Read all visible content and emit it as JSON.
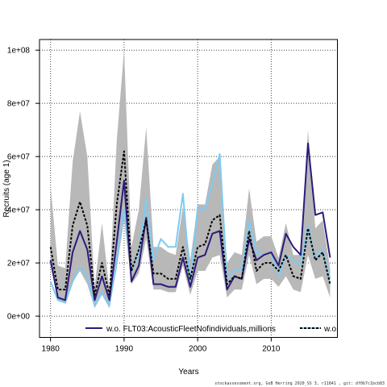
{
  "chart_data": {
    "type": "line",
    "title": "",
    "xlabel": "Years",
    "ylabel": "Recruits (age 1)",
    "xlim": [
      1978.5,
      2019
    ],
    "ylim": [
      -8000000,
      104000000
    ],
    "x_ticks": [
      1980,
      1990,
      2000,
      2010
    ],
    "x_tick_labels": [
      "1980",
      "1990",
      "2000",
      "2010"
    ],
    "y_ticks": [
      0,
      20000000,
      40000000,
      60000000,
      80000000,
      100000000
    ],
    "y_tick_labels": [
      "0e+00",
      "2e+07",
      "4e+07",
      "6e+07",
      "8e+07",
      "1e+08"
    ],
    "grid": true,
    "legend_position": "bottom",
    "x": [
      1980,
      1981,
      1982,
      1983,
      1984,
      1985,
      1986,
      1987,
      1988,
      1989,
      1990,
      1991,
      1992,
      1993,
      1994,
      1995,
      1996,
      1997,
      1998,
      1999,
      2000,
      2001,
      2002,
      2003,
      2004,
      2005,
      2006,
      2007,
      2008,
      2009,
      2010,
      2011,
      2012,
      2013,
      2014,
      2015,
      2016,
      2017,
      2018
    ],
    "band": {
      "lower": [
        19000000,
        6000000,
        5000000,
        13000000,
        17000000,
        12000000,
        3000000,
        8000000,
        3000000,
        18000000,
        36000000,
        12000000,
        16000000,
        29000000,
        10000000,
        10000000,
        9000000,
        9000000,
        19000000,
        8000000,
        17000000,
        17000000,
        22000000,
        23000000,
        7000000,
        10000000,
        10000000,
        23000000,
        12000000,
        14000000,
        14000000,
        11000000,
        15000000,
        10000000,
        9000000,
        23000000,
        14000000,
        15000000,
        7000000
      ],
      "upper": [
        49000000,
        19000000,
        18000000,
        58000000,
        77000000,
        60000000,
        11000000,
        35000000,
        10000000,
        66000000,
        100000000,
        26000000,
        40000000,
        71000000,
        26000000,
        26000000,
        24000000,
        23000000,
        41000000,
        21000000,
        42000000,
        42000000,
        57000000,
        60000000,
        20000000,
        24000000,
        23000000,
        48000000,
        28000000,
        30000000,
        30000000,
        22000000,
        35000000,
        23000000,
        23000000,
        70000000,
        33000000,
        36000000,
        18000000
      ]
    },
    "series": [
      {
        "name": "w.o. FLT03:AcousticFleetNofindividuals,millions",
        "color": "#2e1a7a",
        "style": "solid",
        "values": [
          21000000,
          7000000,
          6000000,
          24000000,
          32000000,
          25000000,
          6000000,
          15000000,
          6000000,
          28000000,
          51000000,
          13000000,
          19000000,
          37000000,
          12000000,
          12000000,
          11000000,
          11000000,
          22000000,
          11000000,
          22000000,
          23000000,
          31000000,
          32000000,
          10000000,
          15000000,
          14000000,
          29000000,
          21000000,
          23000000,
          24000000,
          19000000,
          31000000,
          26000000,
          23000000,
          65000000,
          38000000,
          39000000,
          22000000
        ]
      },
      {
        "name": "w.o.",
        "color": "#7fcbf0",
        "style": "solid",
        "values": [
          13000000,
          6000000,
          5000000,
          13000000,
          18000000,
          15000000,
          4000000,
          9000000,
          4000000,
          21000000,
          40000000,
          17000000,
          23000000,
          44000000,
          21000000,
          29000000,
          26000000,
          26000000,
          46000000,
          13000000,
          41000000,
          40000000,
          50000000,
          61000000,
          14000000,
          17000000,
          17000000,
          36000000,
          24000000,
          23000000,
          24000000,
          15000000,
          23000000,
          21000000,
          19000000,
          34000000,
          22000000,
          25000000,
          14000000
        ]
      },
      {
        "name": "",
        "color": "#000000",
        "style": "dashed",
        "values": [
          26000000,
          10000000,
          10000000,
          34000000,
          43000000,
          34000000,
          8000000,
          20000000,
          8000000,
          42000000,
          62000000,
          17000000,
          25000000,
          36000000,
          16000000,
          16000000,
          14000000,
          14000000,
          26000000,
          14000000,
          26000000,
          27000000,
          36000000,
          38000000,
          12000000,
          15000000,
          14000000,
          32000000,
          17000000,
          20000000,
          20000000,
          17000000,
          23000000,
          15000000,
          14000000,
          33000000,
          21000000,
          24000000,
          12000000
        ]
      }
    ],
    "band_color": "#b8b8b8"
  },
  "footer_text": "stockassessment.org, GoB Herring 2020_SS 3, r11841 , git: df0b7c1bcb83"
}
